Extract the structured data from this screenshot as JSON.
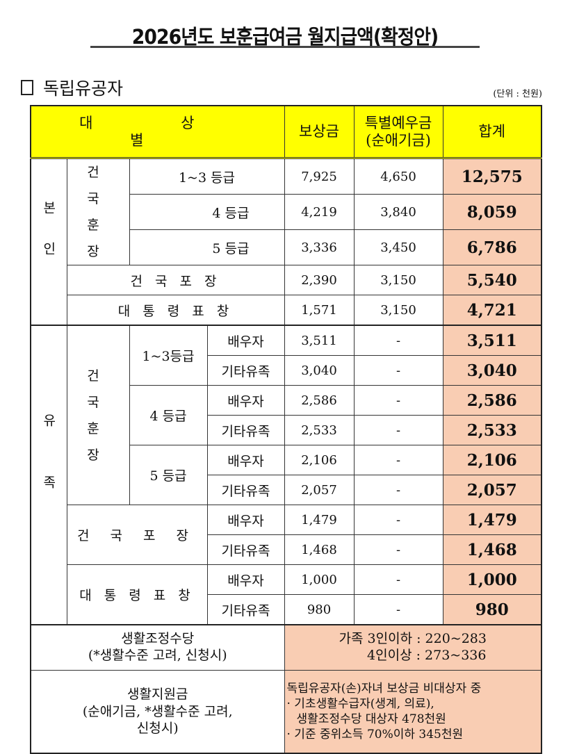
{
  "title": "2026년도 보훈급여금 월지급액(확정안)",
  "section": "독립유공자",
  "unit": "(단위 : 천원)",
  "header": {
    "category": "대 상 별",
    "compensation": "보상금",
    "special_line1": "특별예우금",
    "special_line2": "(순애기금)",
    "total": "합계"
  },
  "self": {
    "group": "본인",
    "order_group": "건 국 훈 장",
    "rows": [
      {
        "label": "1~3 등급",
        "compensation": "7,925",
        "special": "4,650",
        "total": "12,575"
      },
      {
        "label": "4 등급",
        "compensation": "4,219",
        "special": "3,840",
        "total": "8,059"
      },
      {
        "label": "5 등급",
        "compensation": "3,336",
        "special": "3,450",
        "total": "6,786"
      },
      {
        "label": "건 국 포 장",
        "compensation": "2,390",
        "special": "3,150",
        "total": "5,540"
      },
      {
        "label": "대 통 령 표 창",
        "compensation": "1,571",
        "special": "3,150",
        "total": "4,721"
      }
    ]
  },
  "bereaved": {
    "group": "유족",
    "order_group": "건 국 훈 장",
    "grades": [
      "1~3등급",
      "4 등급",
      "5 등급"
    ],
    "medal": "건 국 포 장",
    "citation": "대 통 령 표 창",
    "rows": [
      {
        "type": "배우자",
        "compensation": "3,511",
        "special": "-",
        "total": "3,511"
      },
      {
        "type": "기타유족",
        "compensation": "3,040",
        "special": "-",
        "total": "3,040"
      },
      {
        "type": "배우자",
        "compensation": "2,586",
        "special": "-",
        "total": "2,586"
      },
      {
        "type": "기타유족",
        "compensation": "2,533",
        "special": "-",
        "total": "2,533"
      },
      {
        "type": "배우자",
        "compensation": "2,106",
        "special": "-",
        "total": "2,106"
      },
      {
        "type": "기타유족",
        "compensation": "2,057",
        "special": "-",
        "total": "2,057"
      },
      {
        "type": "배우자",
        "compensation": "1,479",
        "special": "-",
        "total": "1,479"
      },
      {
        "type": "기타유족",
        "compensation": "1,468",
        "special": "-",
        "total": "1,468"
      },
      {
        "type": "배우자",
        "compensation": "1,000",
        "special": "-",
        "total": "1,000"
      },
      {
        "type": "기타유족",
        "compensation": "980",
        "special": "-",
        "total": "980"
      }
    ]
  },
  "living_adjustment": {
    "label1": "생활조정수당",
    "label2": "(*생활수준 고려, 신청시)",
    "value1": "가족 3인이하 : 220~283",
    "value2": "4인이상 : 273~336"
  },
  "living_support": {
    "label1": "생활지원금",
    "label2": "(순애기금, *생활수준 고려,",
    "label3": "신청시)",
    "line1": "독립유공자(손)자녀 보상금 비대상자 중",
    "line2": "· 기초생활수급자(생계, 의료),",
    "line3": "생활조정수당 대상자 478천원",
    "line4": "· 기준 중위소득 70%이하 345천원"
  }
}
